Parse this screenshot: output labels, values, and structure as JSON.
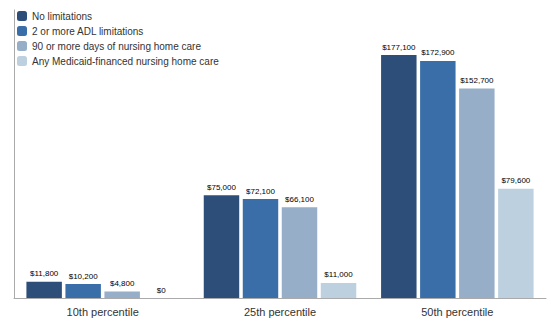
{
  "chart_data": {
    "type": "bar",
    "categories": [
      "10th percentile",
      "25th percentile",
      "50th percentile"
    ],
    "series": [
      {
        "name": "No limitations",
        "color": "#2e4e7a",
        "values": [
          11800,
          75000,
          177100
        ],
        "value_labels": [
          "$11,800",
          "$75,000",
          "$177,100"
        ]
      },
      {
        "name": "2 or more ADL limitations",
        "color": "#3a6ea8",
        "values": [
          10200,
          72100,
          172900
        ],
        "value_labels": [
          "$10,200",
          "$72,100",
          "$172,900"
        ]
      },
      {
        "name": "90 or more days of nursing home care",
        "color": "#97aec8",
        "values": [
          4800,
          66100,
          152700
        ],
        "value_labels": [
          "$4,800",
          "$66,100",
          "$152,700"
        ]
      },
      {
        "name": "Any Medicaid-financed nursing home care",
        "color": "#bdd0e0",
        "values": [
          0,
          11000,
          79600
        ],
        "value_labels": [
          "$0",
          "$11,000",
          "$79,600"
        ]
      }
    ],
    "ylim": [
      0,
      210000
    ],
    "grid": false,
    "legend": "upper left",
    "data_labels": true,
    "tick_labels": "x"
  }
}
